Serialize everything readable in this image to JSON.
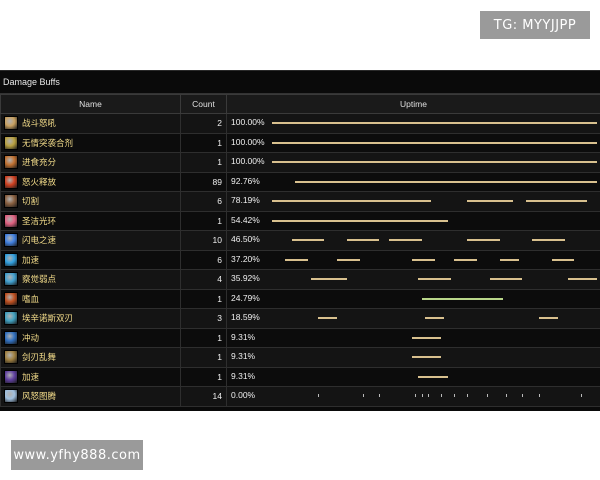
{
  "watermarks": {
    "top": "TG: MYYJJPP",
    "bottom": "www.yfhy888.com"
  },
  "panel": {
    "title": "Damage Buffs",
    "headers": {
      "name": "Name",
      "count": "Count",
      "uptime": "Uptime"
    }
  },
  "rows": [
    {
      "name": "战斗怒吼",
      "count": "2",
      "uptime": "100.00%",
      "uptime_fraction": 1.0,
      "icon": "shout-icon",
      "color": "#c8a060",
      "segments": [
        [
          0.0,
          1.0
        ]
      ]
    },
    {
      "name": "无情突袭合剂",
      "count": "1",
      "uptime": "100.00%",
      "uptime_fraction": 1.0,
      "icon": "flask-icon",
      "color": "#b8a040",
      "segments": [
        [
          0.0,
          1.0
        ]
      ]
    },
    {
      "name": "进食充分",
      "count": "1",
      "uptime": "100.00%",
      "uptime_fraction": 1.0,
      "icon": "well-fed-icon",
      "color": "#c07030",
      "segments": [
        [
          0.0,
          1.0
        ]
      ]
    },
    {
      "name": "怒火释放",
      "count": "89",
      "uptime": "92.76%",
      "uptime_fraction": 0.9276,
      "icon": "rage-icon",
      "color": "#d04020",
      "segments": [
        [
          0.07,
          1.0
        ]
      ]
    },
    {
      "name": "切割",
      "count": "6",
      "uptime": "78.19%",
      "uptime_fraction": 0.7819,
      "icon": "slice-icon",
      "color": "#8a6040",
      "segments": [
        [
          0.0,
          0.49
        ],
        [
          0.6,
          0.74
        ],
        [
          0.78,
          0.97
        ]
      ]
    },
    {
      "name": "圣洁光环",
      "count": "1",
      "uptime": "54.42%",
      "uptime_fraction": 0.5442,
      "icon": "holy-aura-icon",
      "color": "#e06080",
      "segments": [
        [
          0.0,
          0.54
        ]
      ]
    },
    {
      "name": "闪电之速",
      "count": "10",
      "uptime": "46.50%",
      "uptime_fraction": 0.465,
      "icon": "lightning-speed-icon",
      "color": "#4080e0",
      "segments": [
        [
          0.06,
          0.16
        ],
        [
          0.23,
          0.33
        ],
        [
          0.36,
          0.46
        ],
        [
          0.6,
          0.7
        ],
        [
          0.8,
          0.9
        ]
      ]
    },
    {
      "name": "加速",
      "count": "6",
      "uptime": "37.20%",
      "uptime_fraction": 0.372,
      "icon": "haste-icon",
      "color": "#30a0e0",
      "segments": [
        [
          0.04,
          0.11
        ],
        [
          0.2,
          0.27
        ],
        [
          0.43,
          0.5
        ],
        [
          0.56,
          0.63
        ],
        [
          0.7,
          0.76
        ],
        [
          0.86,
          0.93
        ]
      ]
    },
    {
      "name": "察觉弱点",
      "count": "4",
      "uptime": "35.92%",
      "uptime_fraction": 0.3592,
      "icon": "weakness-icon",
      "color": "#40a0d0",
      "segments": [
        [
          0.12,
          0.23
        ],
        [
          0.45,
          0.55
        ],
        [
          0.67,
          0.77
        ],
        [
          0.91,
          1.0
        ]
      ]
    },
    {
      "name": "嗜血",
      "count": "1",
      "uptime": "24.79%",
      "uptime_fraction": 0.2479,
      "icon": "bloodlust-icon",
      "color": "#c05020",
      "segments": [
        [
          0.46,
          0.71
        ]
      ],
      "green": true
    },
    {
      "name": "埃辛诺斯双刃",
      "count": "3",
      "uptime": "18.59%",
      "uptime_fraction": 0.1859,
      "icon": "warglaives-icon",
      "color": "#40a0c0",
      "segments": [
        [
          0.14,
          0.2
        ],
        [
          0.47,
          0.53
        ],
        [
          0.82,
          0.88
        ]
      ]
    },
    {
      "name": "冲动",
      "count": "1",
      "uptime": "9.31%",
      "uptime_fraction": 0.0931,
      "icon": "impulse-icon",
      "color": "#3070c0",
      "segments": [
        [
          0.43,
          0.52
        ]
      ]
    },
    {
      "name": "剑刃乱舞",
      "count": "1",
      "uptime": "9.31%",
      "uptime_fraction": 0.0931,
      "icon": "blade-flurry-icon",
      "color": "#a08040",
      "segments": [
        [
          0.43,
          0.52
        ]
      ]
    },
    {
      "name": "加速",
      "count": "1",
      "uptime": "9.31%",
      "uptime_fraction": 0.0931,
      "icon": "haste-icon",
      "color": "#6040a0",
      "segments": [
        [
          0.45,
          0.54
        ]
      ]
    },
    {
      "name": "风怒图腾",
      "count": "14",
      "uptime": "0.00%",
      "uptime_fraction": 0.0,
      "icon": "windfury-totem-icon",
      "color": "#a0c0e0",
      "ticks": [
        0.14,
        0.28,
        0.33,
        0.44,
        0.46,
        0.48,
        0.52,
        0.56,
        0.6,
        0.66,
        0.72,
        0.77,
        0.82,
        0.95
      ]
    }
  ]
}
